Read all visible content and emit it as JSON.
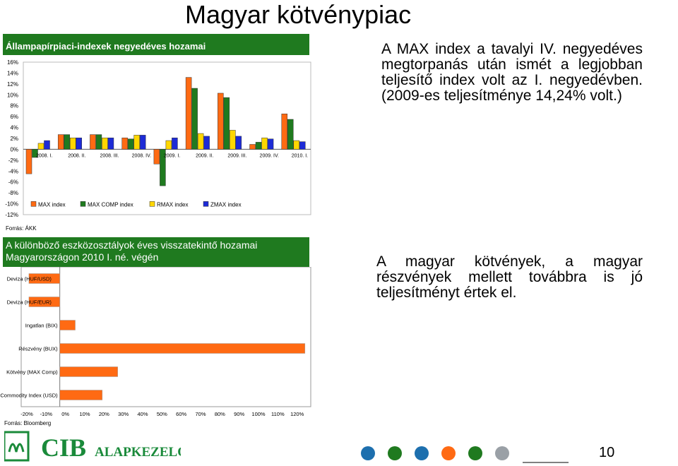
{
  "slide": {
    "title": "Magyar kötvénypiac",
    "page_number": "10"
  },
  "chart1": {
    "header": "Állampapírpiaci-indexek negyedéves hozamai",
    "source": "Forrás: ÁKK",
    "colors": [
      "#ff6a13",
      "#1f7a1f",
      "#ffd700",
      "#1d2bd6"
    ]
  },
  "chart2": {
    "header": "A különböző eszközosztályok éves visszatekintő hozamai Magyarországon 2010 I. né. végén",
    "source": "Forrás: Bloomberg",
    "bar_color": "#ff6a13"
  },
  "paragraphs": {
    "p1": "A MAX index a tavalyi IV. negyedéves megtorpanás után ismét a legjobban teljesítő index volt az I. negyedévben. (2009-es teljesítménye 14,24% volt.)",
    "p2": "A magyar kötvények, a magyar részvények mellett továbbra is jó teljesítményt értek el."
  },
  "logo": {
    "text": "CIB",
    "subtext": "ALAPKEZELŐ",
    "dot_colors": [
      "#1d6fae",
      "#1f7a1f",
      "#1d6fae",
      "#ff6a13",
      "#1f7a1f",
      "#9aa0a6"
    ]
  },
  "chart_data": [
    {
      "type": "bar",
      "title": "Állampapírpiaci-indexek negyedéves hozamai",
      "categories": [
        "2008. I.",
        "2008. II.",
        "2008. III.",
        "2008. IV.",
        "2009. I.",
        "2009. II.",
        "2009. III.",
        "2009. IV.",
        "2010. I."
      ],
      "series": [
        {
          "name": "MAX index",
          "values": [
            -4.5,
            2.7,
            2.7,
            2.1,
            -2.7,
            13.2,
            10.3,
            0.9,
            6.5
          ]
        },
        {
          "name": "MAX COMP index",
          "values": [
            -1.5,
            2.7,
            2.7,
            1.9,
            -6.7,
            11.2,
            9.5,
            1.3,
            5.5
          ]
        },
        {
          "name": "RMAX index",
          "values": [
            1.1,
            2.1,
            2.1,
            2.6,
            1.6,
            2.9,
            3.5,
            2.1,
            1.6
          ]
        },
        {
          "name": "ZMAX index",
          "values": [
            1.6,
            2.1,
            2.1,
            2.6,
            2.1,
            2.4,
            2.4,
            1.9,
            1.4
          ]
        }
      ],
      "y_ticks": [
        "16%",
        "14%",
        "12%",
        "10%",
        "8%",
        "6%",
        "4%",
        "2%",
        "0%",
        "-2%",
        "-4%",
        "-6%",
        "-8%",
        "-10%",
        "-12%"
      ],
      "ylim": [
        -12,
        16
      ],
      "legend": "bottom-inside",
      "grid": false
    },
    {
      "type": "bar",
      "orientation": "horizontal",
      "title": "A különböző eszközosztályok éves visszatekintő hozamai Magyarországon 2010 I. né. végén",
      "categories": [
        "Deviza (HUF/USD)",
        "Deviza (HUF/EUR)",
        "Ingatlan (BIX)",
        "Részvény (BUX)",
        "Kötvény (MAX Comp)",
        "DB Commodity Index (USD)"
      ],
      "values": [
        -16,
        -16,
        8,
        127,
        30,
        22
      ],
      "x_ticks": [
        "-20%",
        "-10%",
        "0%",
        "10%",
        "20%",
        "30%",
        "40%",
        "50%",
        "60%",
        "70%",
        "80%",
        "90%",
        "100%",
        "110%",
        "120%"
      ],
      "xlim": [
        -20,
        130
      ],
      "grid": false
    }
  ]
}
